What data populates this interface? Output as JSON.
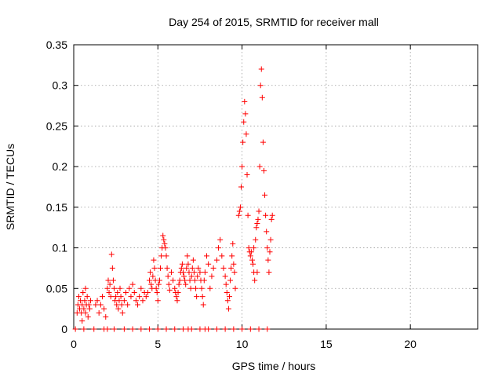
{
  "chart_data": {
    "type": "scatter",
    "title": "Day 254 of 2015, SRMTID for receiver mall",
    "xlabel": "GPS time / hours",
    "ylabel": "SRMTID / TECUs",
    "xlim": [
      0,
      24
    ],
    "ylim": [
      0,
      0.35
    ],
    "xticks": [
      0,
      5,
      10,
      15,
      20
    ],
    "xtick_labels": [
      "0",
      "5",
      "10",
      "15",
      "20"
    ],
    "yticks": [
      0,
      0.05,
      0.1,
      0.15,
      0.2,
      0.25,
      0.3,
      0.35
    ],
    "ytick_labels": [
      "0",
      "0.05",
      "0.1",
      "0.15",
      "0.2",
      "0.25",
      "0.3",
      "0.35"
    ],
    "grid": true,
    "marker": "+",
    "marker_color": "#ff0000",
    "series": [
      {
        "name": "SRMTID",
        "points": [
          [
            0.1,
            0
          ],
          [
            0.2,
            0.02
          ],
          [
            0.25,
            0.03
          ],
          [
            0.3,
            0.04
          ],
          [
            0.35,
            0.025
          ],
          [
            0.4,
            0.035
          ],
          [
            0.45,
            0.02
          ],
          [
            0.5,
            0.03
          ],
          [
            0.55,
            0.045
          ],
          [
            0.6,
            0.025
          ],
          [
            0.65,
            0.035
          ],
          [
            0.7,
            0.02
          ],
          [
            0.75,
            0.03
          ],
          [
            0.8,
            0.04
          ],
          [
            0.85,
            0.015
          ],
          [
            0.9,
            0.03
          ],
          [
            0.95,
            0.025
          ],
          [
            1.0,
            0.035
          ],
          [
            0.5,
            0.01
          ],
          [
            0.7,
            0.05
          ],
          [
            1.3,
            0.03
          ],
          [
            1.4,
            0.035
          ],
          [
            1.5,
            0.02
          ],
          [
            1.6,
            0.03
          ],
          [
            1.7,
            0.04
          ],
          [
            1.8,
            0.025
          ],
          [
            1.9,
            0.015
          ],
          [
            2.0,
            0.05
          ],
          [
            2.05,
            0.06
          ],
          [
            2.1,
            0.045
          ],
          [
            2.15,
            0.055
          ],
          [
            2.2,
            0.04
          ],
          [
            2.25,
            0.092
          ],
          [
            2.3,
            0.075
          ],
          [
            2.35,
            0.06
          ],
          [
            2.4,
            0.05
          ],
          [
            2.45,
            0.035
          ],
          [
            2.5,
            0.04
          ],
          [
            2.55,
            0.03
          ],
          [
            2.6,
            0.045
          ],
          [
            2.65,
            0.025
          ],
          [
            2.7,
            0.035
          ],
          [
            2.75,
            0.05
          ],
          [
            2.8,
            0.04
          ],
          [
            2.85,
            0.03
          ],
          [
            2.9,
            0.02
          ],
          [
            3.0,
            0.035
          ],
          [
            3.1,
            0.045
          ],
          [
            3.2,
            0.03
          ],
          [
            3.3,
            0.05
          ],
          [
            3.4,
            0.04
          ],
          [
            3.5,
            0.055
          ],
          [
            3.6,
            0.045
          ],
          [
            3.7,
            0.035
          ],
          [
            3.8,
            0.03
          ],
          [
            3.9,
            0.04
          ],
          [
            4.0,
            0.05
          ],
          [
            4.1,
            0.035
          ],
          [
            4.2,
            0.045
          ],
          [
            4.3,
            0.04
          ],
          [
            4.4,
            0.045
          ],
          [
            4.5,
            0.06
          ],
          [
            4.55,
            0.07
          ],
          [
            4.6,
            0.055
          ],
          [
            4.65,
            0.05
          ],
          [
            4.7,
            0.065
          ],
          [
            4.75,
            0.085
          ],
          [
            4.8,
            0.075
          ],
          [
            4.85,
            0.06
          ],
          [
            4.9,
            0.05
          ],
          [
            4.95,
            0.045
          ],
          [
            5.0,
            0.035
          ],
          [
            5.05,
            0.055
          ],
          [
            5.1,
            0.06
          ],
          [
            5.15,
            0.075
          ],
          [
            5.2,
            0.09
          ],
          [
            5.25,
            0.1
          ],
          [
            5.3,
            0.115
          ],
          [
            5.35,
            0.11
          ],
          [
            5.4,
            0.105
          ],
          [
            5.45,
            0.1
          ],
          [
            5.5,
            0.09
          ],
          [
            5.55,
            0.075
          ],
          [
            5.6,
            0.065
          ],
          [
            5.65,
            0.055
          ],
          [
            5.7,
            0.048
          ],
          [
            5.8,
            0.07
          ],
          [
            5.9,
            0.06
          ],
          [
            6.0,
            0.05
          ],
          [
            6.05,
            0.045
          ],
          [
            6.1,
            0.04
          ],
          [
            6.15,
            0.035
          ],
          [
            6.2,
            0.045
          ],
          [
            6.25,
            0.055
          ],
          [
            6.3,
            0.06
          ],
          [
            6.35,
            0.07
          ],
          [
            6.4,
            0.075
          ],
          [
            6.45,
            0.08
          ],
          [
            6.5,
            0.07
          ],
          [
            6.55,
            0.065
          ],
          [
            6.6,
            0.06
          ],
          [
            6.65,
            0.055
          ],
          [
            6.7,
            0.075
          ],
          [
            6.75,
            0.09
          ],
          [
            6.8,
            0.08
          ],
          [
            6.85,
            0.07
          ],
          [
            6.9,
            0.06
          ],
          [
            6.95,
            0.05
          ],
          [
            7.0,
            0.065
          ],
          [
            7.05,
            0.075
          ],
          [
            7.1,
            0.085
          ],
          [
            7.15,
            0.07
          ],
          [
            7.2,
            0.06
          ],
          [
            7.25,
            0.05
          ],
          [
            7.3,
            0.04
          ],
          [
            7.35,
            0.065
          ],
          [
            7.4,
            0.075
          ],
          [
            7.5,
            0.07
          ],
          [
            7.55,
            0.06
          ],
          [
            7.6,
            0.05
          ],
          [
            7.65,
            0.04
          ],
          [
            7.7,
            0.03
          ],
          [
            7.75,
            0.06
          ],
          [
            7.8,
            0.07
          ],
          [
            7.9,
            0.09
          ],
          [
            8.0,
            0.08
          ],
          [
            8.1,
            0.05
          ],
          [
            8.2,
            0.065
          ],
          [
            8.3,
            0.075
          ],
          [
            8.5,
            0.085
          ],
          [
            8.6,
            0.1
          ],
          [
            8.7,
            0.11
          ],
          [
            8.8,
            0.09
          ],
          [
            8.9,
            0.075
          ],
          [
            9.0,
            0.065
          ],
          [
            9.05,
            0.055
          ],
          [
            9.1,
            0.045
          ],
          [
            9.15,
            0.035
          ],
          [
            9.2,
            0.025
          ],
          [
            9.25,
            0.04
          ],
          [
            9.3,
            0.06
          ],
          [
            9.35,
            0.075
          ],
          [
            9.4,
            0.09
          ],
          [
            9.45,
            0.105
          ],
          [
            9.5,
            0.08
          ],
          [
            9.55,
            0.07
          ],
          [
            9.6,
            0.05
          ],
          [
            9.8,
            0.14
          ],
          [
            9.85,
            0.145
          ],
          [
            9.9,
            0.15
          ],
          [
            9.95,
            0.175
          ],
          [
            10.0,
            0.2
          ],
          [
            10.05,
            0.23
          ],
          [
            10.1,
            0.255
          ],
          [
            10.15,
            0.28
          ],
          [
            10.2,
            0.265
          ],
          [
            10.25,
            0.24
          ],
          [
            10.3,
            0.19
          ],
          [
            10.35,
            0.14
          ],
          [
            10.4,
            0.1
          ],
          [
            10.45,
            0.095
          ],
          [
            10.5,
            0.09
          ],
          [
            10.55,
            0.095
          ],
          [
            10.6,
            0.085
          ],
          [
            10.65,
            0.08
          ],
          [
            10.7,
            0.07
          ],
          [
            10.75,
            0.06
          ],
          [
            10.8,
            0.11
          ],
          [
            10.85,
            0.125
          ],
          [
            10.9,
            0.13
          ],
          [
            10.95,
            0.135
          ],
          [
            11.0,
            0.145
          ],
          [
            11.05,
            0.2
          ],
          [
            11.1,
            0.3
          ],
          [
            11.15,
            0.32
          ],
          [
            11.2,
            0.285
          ],
          [
            11.25,
            0.23
          ],
          [
            11.3,
            0.195
          ],
          [
            11.35,
            0.165
          ],
          [
            11.4,
            0.14
          ],
          [
            11.45,
            0.12
          ],
          [
            11.5,
            0.1
          ],
          [
            11.55,
            0.085
          ],
          [
            11.6,
            0.07
          ],
          [
            11.65,
            0.095
          ],
          [
            11.7,
            0.11
          ],
          [
            11.75,
            0.135
          ],
          [
            11.8,
            0.14
          ],
          [
            10.9,
            0.07
          ],
          [
            10.7,
            0.1
          ],
          [
            3.0,
            0.0
          ],
          [
            4.0,
            0.0
          ],
          [
            5.0,
            0.0
          ],
          [
            6.0,
            0.0
          ],
          [
            7.0,
            0.0
          ],
          [
            8.0,
            0.0
          ],
          [
            9.0,
            0.0
          ],
          [
            10.0,
            0.0
          ],
          [
            11.0,
            0.0
          ],
          [
            11.5,
            0.0
          ],
          [
            0.6,
            0.0
          ],
          [
            1.2,
            0.0
          ],
          [
            1.8,
            0.0
          ],
          [
            2.4,
            0.0
          ],
          [
            3.5,
            0.0
          ],
          [
            4.5,
            0.0
          ],
          [
            5.5,
            0.0
          ],
          [
            6.5,
            0.0
          ],
          [
            7.5,
            0.0
          ],
          [
            8.5,
            0.0
          ],
          [
            9.5,
            0.0
          ],
          [
            10.5,
            0.0
          ],
          [
            2.0,
            0.0
          ],
          [
            6.8,
            0.0
          ],
          [
            7.8,
            0.0
          ]
        ]
      }
    ]
  }
}
